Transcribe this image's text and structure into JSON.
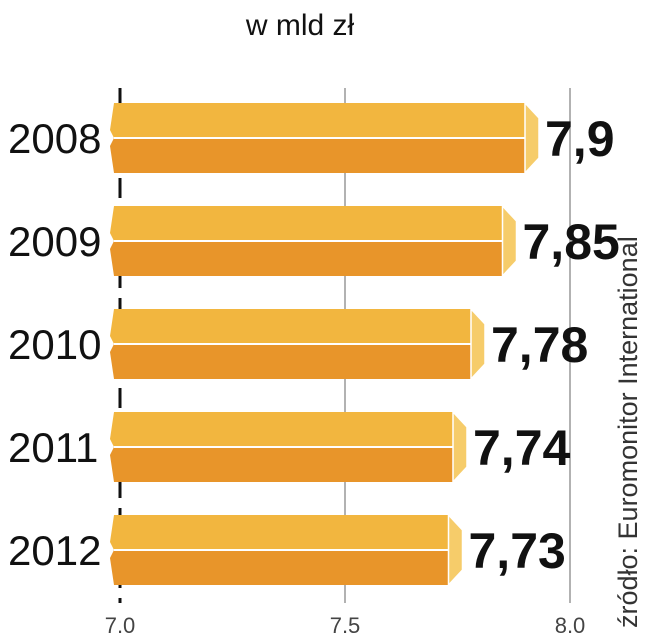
{
  "chart_data": {
    "type": "bar",
    "orientation": "horizontal",
    "title": "w mld zł",
    "categories": [
      "2008",
      "2009",
      "2010",
      "2011",
      "2012"
    ],
    "values": [
      7.9,
      7.85,
      7.78,
      7.74,
      7.73
    ],
    "value_labels": [
      "7,9",
      "7,85",
      "7,78",
      "7,74",
      "7,73"
    ],
    "xlim": [
      7.0,
      8.0
    ],
    "xticks": [
      7.0,
      7.5,
      8.0
    ],
    "xtick_labels": [
      "7.0",
      "7.5",
      "8.0"
    ],
    "grid": true,
    "source": "źródło: Euromonitor International",
    "colors": {
      "bar_top": "#F2B63F",
      "bar_bottom": "#E8952A",
      "bar_edge": "#FFFFFF",
      "bar_end_cap": "#F6CC6A",
      "gridline": "#999999",
      "axis": "#111111"
    }
  }
}
